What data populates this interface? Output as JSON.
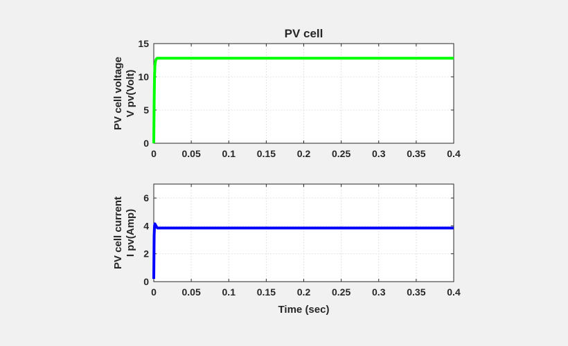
{
  "chart_data": [
    {
      "type": "line",
      "title": "PV cell",
      "ylabel_lines": [
        "PV cell voltage",
        "V pv(Volt)"
      ],
      "xlabel": "",
      "xlim": [
        0,
        0.4
      ],
      "ylim": [
        0,
        15
      ],
      "xticks": [
        0,
        0.05,
        0.1,
        0.15,
        0.2,
        0.25,
        0.3,
        0.35,
        0.4
      ],
      "xtick_labels": [
        "0",
        "0.05",
        "0.1",
        "0.15",
        "0.2",
        "0.25",
        "0.3",
        "0.35",
        "0.4"
      ],
      "yticks": [
        0,
        5,
        10,
        15
      ],
      "ytick_labels": [
        "0",
        "5",
        "10",
        "15"
      ],
      "grid": true,
      "series": [
        {
          "color": "#00ff00",
          "x": [
            0,
            0.0005,
            0.001,
            0.0015,
            0.002,
            0.003,
            0.004,
            0.005,
            0.01,
            0.05,
            0.1,
            0.15,
            0.2,
            0.25,
            0.3,
            0.35,
            0.4
          ],
          "y": [
            0,
            6,
            10,
            11.6,
            12.2,
            12.6,
            12.75,
            12.8,
            12.8,
            12.8,
            12.8,
            12.8,
            12.8,
            12.8,
            12.8,
            12.8,
            12.8
          ]
        }
      ]
    },
    {
      "type": "line",
      "title": "",
      "ylabel_lines": [
        "PV cell current",
        "I pv(Amp)"
      ],
      "xlabel": "Time (sec)",
      "xlim": [
        0,
        0.4
      ],
      "ylim": [
        0,
        7
      ],
      "xticks": [
        0,
        0.05,
        0.1,
        0.15,
        0.2,
        0.25,
        0.3,
        0.35,
        0.4
      ],
      "xtick_labels": [
        "0",
        "0.05",
        "0.1",
        "0.15",
        "0.2",
        "0.25",
        "0.3",
        "0.35",
        "0.4"
      ],
      "yticks": [
        0,
        2,
        4,
        6
      ],
      "ytick_labels": [
        "0",
        "2",
        "4",
        "6"
      ],
      "grid": true,
      "series": [
        {
          "color": "#0000ff",
          "x": [
            0,
            0.0005,
            0.001,
            0.0015,
            0.002,
            0.003,
            0.004,
            0.005,
            0.006,
            0.008,
            0.01,
            0.05,
            0.1,
            0.15,
            0.2,
            0.25,
            0.3,
            0.35,
            0.4
          ],
          "y": [
            0.2,
            3.3,
            4.0,
            4.15,
            4.1,
            4.0,
            3.9,
            3.85,
            3.85,
            3.85,
            3.85,
            3.85,
            3.85,
            3.85,
            3.85,
            3.85,
            3.85,
            3.85,
            3.85
          ]
        }
      ]
    }
  ]
}
